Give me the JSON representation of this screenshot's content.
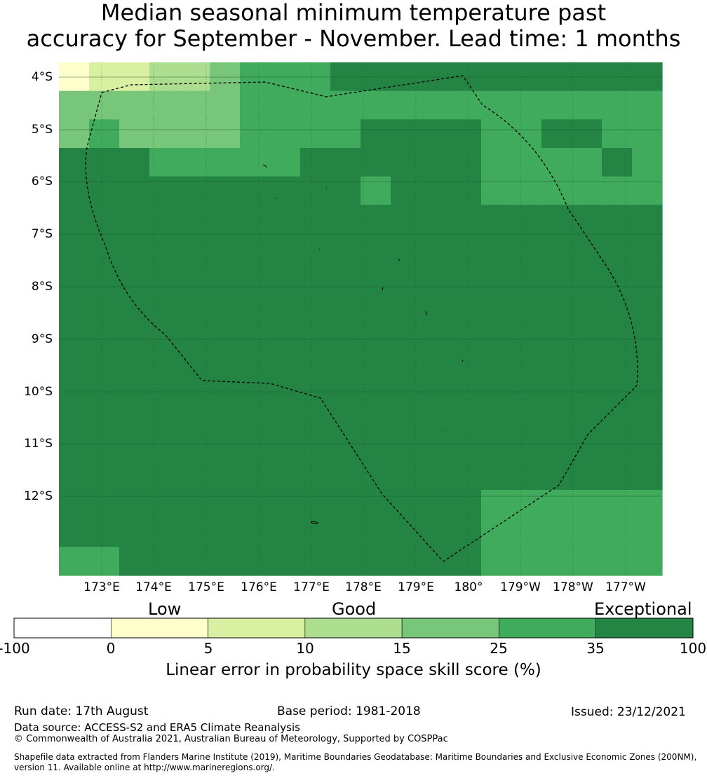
{
  "title": {
    "line1": "Median seasonal minimum temperature past",
    "line2": "accuracy for September - November. Lead time: 1 months"
  },
  "map": {
    "lat_labels": [
      "4°S",
      "5°S",
      "6°S",
      "7°S",
      "8°S",
      "9°S",
      "10°S",
      "11°S",
      "12°S"
    ],
    "lon_labels": [
      "173°E",
      "174°E",
      "175°E",
      "176°E",
      "177°E",
      "178°E",
      "179°E",
      "180°",
      "179°W",
      "178°W",
      "177°W"
    ],
    "grid_cells_rows": [
      "12233455566666666666",
      "44444455555555555555",
      "45444455556666556655",
      "66655555666666555565",
      "66666666665666555555",
      "66666666666666666666",
      "66666666666666666666",
      "66666666666666666666",
      "66666666666666666666",
      "66666666666666666666",
      "66666666666666666666",
      "66666666666666666666",
      "66666666666666666666",
      "66666666666666666666",
      "66666666666666666666",
      "66666666666666555555",
      "66666666666666555555",
      "55666666666666555555"
    ],
    "gridlines": true,
    "boundary_line": "dashed"
  },
  "colorbar": {
    "quality_labels": [
      "Low",
      "Good",
      "Exceptional"
    ],
    "ticks": [
      "-100",
      "0",
      "5",
      "10",
      "15",
      "25",
      "35",
      "100"
    ],
    "colors": [
      "#ffffff",
      "#ffffcc",
      "#d9f0a3",
      "#addd8e",
      "#78c679",
      "#41ab5d",
      "#238443"
    ],
    "label": "Linear error in probability space skill score (%)"
  },
  "footer": {
    "run_date": "Run date: 17th August",
    "base_period": "Base period: 1981-2018",
    "issued": "Issued: 23/12/2021",
    "data_source": "Data source: ACCESS-S2 and ERA5 Climate Reanalysis",
    "copyright": "© Commonwealth of Australia 2021, Australian Bureau of Meteorology, Supported by COSPPac",
    "shapefile_line1": "Shapefile data extracted from Flanders Marine Institute (2019), Maritime Boundaries Geodatabase: Maritime Boundaries and Exclusive Economic Zones (200NM),",
    "shapefile_line2": "version 11. Available online at http://www.marineregions.org/."
  }
}
